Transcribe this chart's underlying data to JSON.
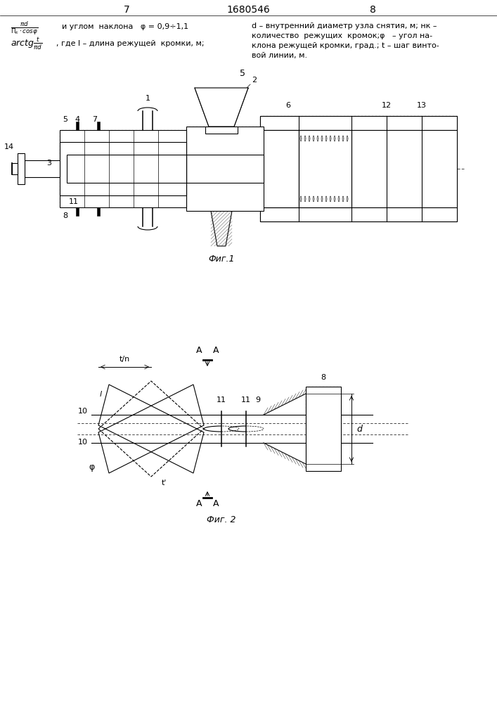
{
  "bg_color": "#ffffff",
  "line_color": "#000000",
  "page_left": "7",
  "page_center": "1680546",
  "page_right": "8",
  "fig1_label": "Фиг.1",
  "fig2_label": "Фиг. 2",
  "label_5": "5",
  "hdr_left1": "и углом  наклона   φ = 0,9÷1,1",
  "hdr_left2": ", где l – длина режущей  кромки, м;",
  "hdr_right": "d – внутренний диаметр узла снятия, м; нк –\nколичество  режущих  кромок;φ   – угол на-\nклона режущей кромки, град.; t – шаг винто-\nвой линии, м."
}
